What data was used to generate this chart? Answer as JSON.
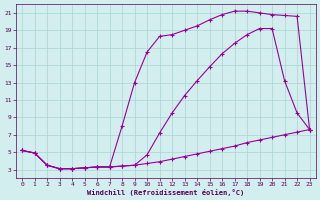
{
  "xlabel": "Windchill (Refroidissement éolien,°C)",
  "bg_color": "#d2eeee",
  "grid_color": "#aad4d4",
  "line_color": "#990099",
  "line_width": 0.8,
  "marker": "+",
  "markersize": 3,
  "markeredgewidth": 0.8,
  "xlim": [
    -0.5,
    23.5
  ],
  "ylim": [
    2.0,
    22.0
  ],
  "yticks": [
    3,
    5,
    7,
    9,
    11,
    13,
    15,
    17,
    19,
    21
  ],
  "xticks": [
    0,
    1,
    2,
    3,
    4,
    5,
    6,
    7,
    8,
    9,
    10,
    11,
    12,
    13,
    14,
    15,
    16,
    17,
    18,
    19,
    20,
    21,
    22,
    23
  ],
  "curve1_x": [
    0,
    1,
    2,
    3,
    4,
    5,
    6,
    7,
    8,
    9,
    10,
    11,
    12,
    13,
    14,
    15,
    16,
    17,
    18,
    19,
    20,
    21,
    22,
    23
  ],
  "curve1_y": [
    5.2,
    4.9,
    3.5,
    3.1,
    3.1,
    3.2,
    3.3,
    3.3,
    3.4,
    3.5,
    3.7,
    3.9,
    4.2,
    4.5,
    4.8,
    5.1,
    5.4,
    5.7,
    6.1,
    6.4,
    6.7,
    7.0,
    7.3,
    7.6
  ],
  "curve2_x": [
    0,
    1,
    2,
    3,
    4,
    5,
    6,
    7,
    8,
    9,
    10,
    11,
    12,
    13,
    14,
    15,
    16,
    17,
    18,
    19,
    20,
    21,
    22,
    23
  ],
  "curve2_y": [
    5.2,
    4.9,
    3.5,
    3.1,
    3.1,
    3.2,
    3.3,
    3.3,
    3.4,
    3.5,
    4.7,
    7.2,
    9.5,
    11.5,
    13.2,
    14.8,
    16.3,
    17.5,
    18.5,
    19.2,
    19.2,
    13.2,
    9.5,
    7.6
  ],
  "curve3_x": [
    0,
    1,
    2,
    3,
    4,
    5,
    6,
    7,
    8,
    9,
    10,
    11,
    12,
    13,
    14,
    15,
    16,
    17,
    18,
    19,
    20,
    21,
    22,
    23
  ],
  "curve3_y": [
    5.2,
    4.9,
    3.5,
    3.1,
    3.1,
    3.2,
    3.3,
    3.3,
    8.0,
    13.0,
    16.5,
    18.3,
    18.5,
    19.0,
    19.5,
    20.2,
    20.8,
    21.2,
    21.2,
    21.0,
    20.8,
    20.7,
    20.6,
    7.6
  ]
}
